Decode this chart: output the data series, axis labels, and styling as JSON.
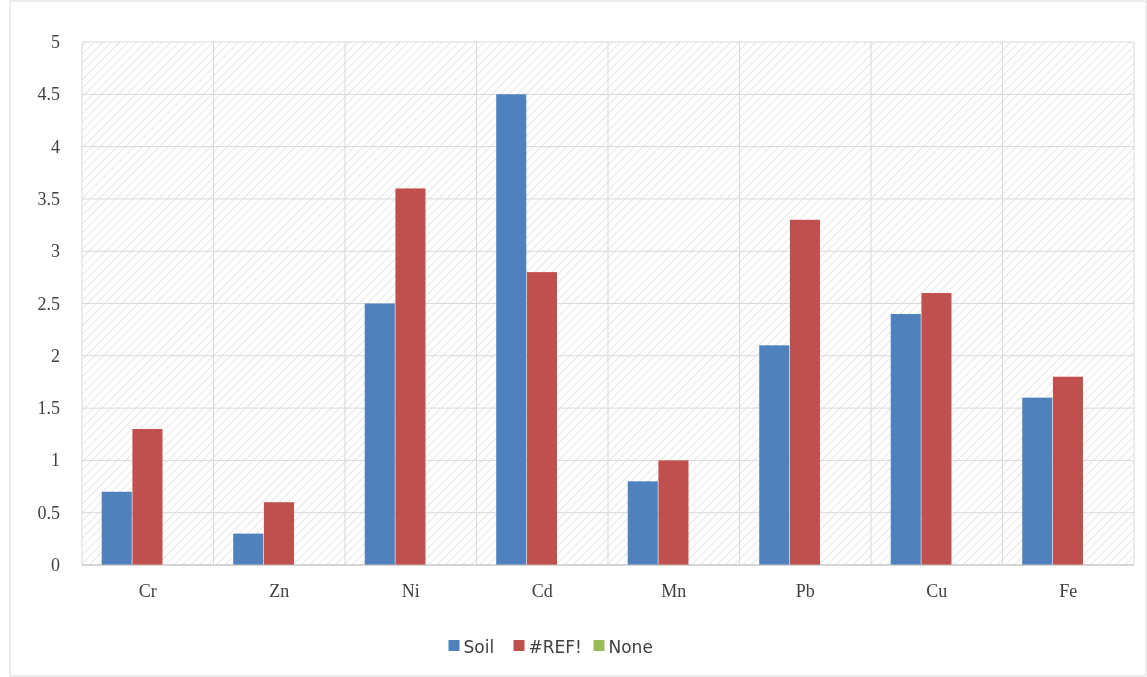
{
  "chart_data": {
    "type": "bar",
    "categories": [
      "Cr",
      "Zn",
      "Ni",
      "Cd",
      "Mn",
      "Pb",
      "Cu",
      "Fe"
    ],
    "series": [
      {
        "name": "Soil",
        "color": "#4f81bd",
        "values": [
          0.7,
          0.3,
          2.5,
          4.5,
          0.8,
          2.1,
          2.4,
          1.6
        ]
      },
      {
        "name": "#REF!",
        "color": "#c0504d",
        "values": [
          1.3,
          0.6,
          3.6,
          2.8,
          1.0,
          3.3,
          2.6,
          1.8
        ]
      },
      {
        "name": "None",
        "color": "#9bbb59",
        "values": [
          null,
          null,
          null,
          null,
          null,
          null,
          null,
          null
        ]
      }
    ],
    "ylim": [
      0,
      5
    ],
    "yticks": [
      0,
      0.5,
      1,
      1.5,
      2,
      2.5,
      3,
      3.5,
      4,
      4.5,
      5
    ],
    "grid": true,
    "legend": "bottom"
  }
}
